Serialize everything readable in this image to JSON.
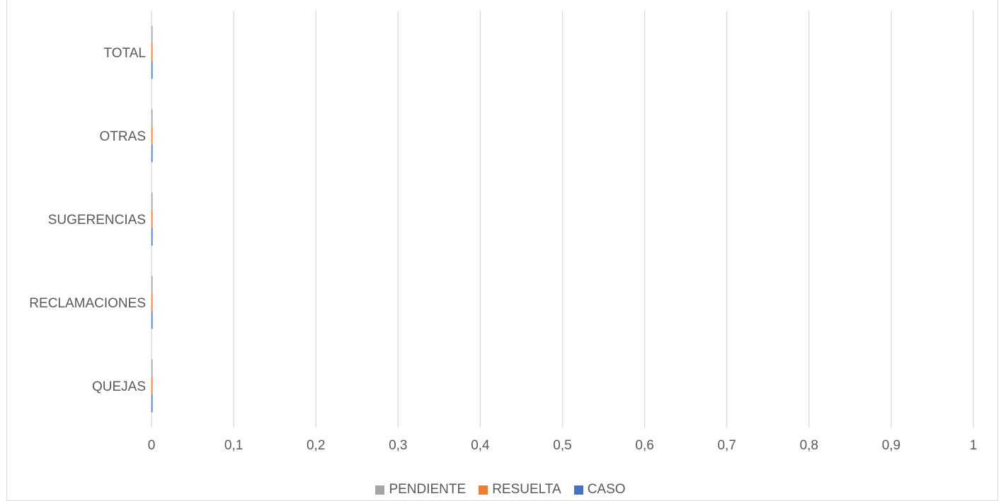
{
  "chart_data": {
    "type": "bar",
    "orientation": "horizontal",
    "title": "",
    "xlabel": "",
    "ylabel": "",
    "categories": [
      "QUEJAS",
      "RECLAMACIONES",
      "SUGERENCIAS",
      "OTRAS",
      "TOTAL"
    ],
    "series": [
      {
        "name": "CASO",
        "color": "#4472c4",
        "values": [
          0,
          0,
          0,
          0,
          0
        ]
      },
      {
        "name": "RESUELTA",
        "color": "#ed7d31",
        "values": [
          0,
          0,
          0,
          0,
          0
        ]
      },
      {
        "name": "PENDIENTE",
        "color": "#a5a5a5",
        "values": [
          0,
          0,
          0,
          0,
          0
        ]
      }
    ],
    "xlim": [
      0,
      1
    ],
    "xticks": [
      "0",
      "0,1",
      "0,2",
      "0,3",
      "0,4",
      "0,5",
      "0,6",
      "0,7",
      "0,8",
      "0,9",
      "1"
    ],
    "grid": true,
    "legend_position": "bottom",
    "legend_order": [
      "PENDIENTE",
      "RESUELTA",
      "CASO"
    ]
  }
}
